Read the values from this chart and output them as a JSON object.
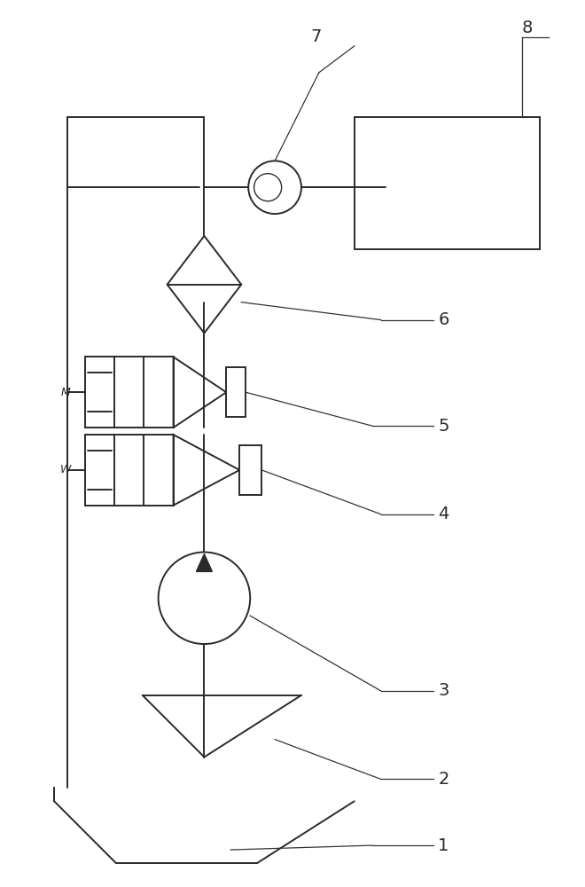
{
  "bg_color": "#ffffff",
  "line_color": "#2a2a2a",
  "line_width": 1.4,
  "fig_width": 6.6,
  "fig_height": 10.0,
  "dpi": 100
}
